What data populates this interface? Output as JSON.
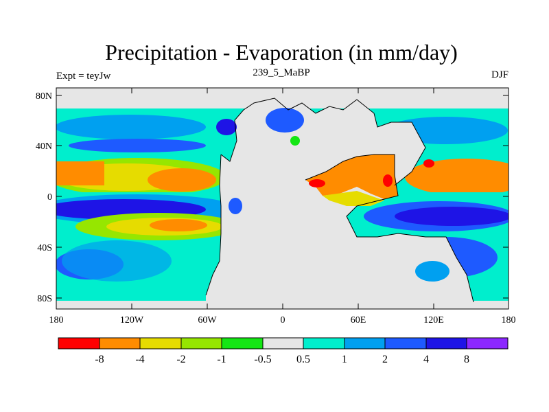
{
  "title": "Precipitation - Evaporation (in mm/day)",
  "experiment_label": "Expt = teyJw",
  "period_label": "239_5_MaBP",
  "season_label": "DJF",
  "lat_ticks": [
    "80N",
    "40N",
    "0",
    "40S",
    "80S"
  ],
  "lon_ticks": [
    "180",
    "120W",
    "60W",
    "0",
    "60E",
    "120E",
    "180"
  ],
  "colorbar": {
    "labels": [
      "-8",
      "-4",
      "-2",
      "-1",
      "-0.5",
      "0.5",
      "1",
      "2",
      "4",
      "8"
    ],
    "colors": [
      "#ff0000",
      "#ff8c00",
      "#e6dc00",
      "#96e600",
      "#14e614",
      "#e6e6e6",
      "#00eecd",
      "#00a0f0",
      "#1e5aff",
      "#1e14e6",
      "#8c28ff"
    ]
  },
  "colors": {
    "dry_strong": "#ff0000",
    "dry": "#ff8c00",
    "neutral": "#e6e6e6",
    "wet": "#00a0f0",
    "wet_strong": "#1e14e6"
  }
}
